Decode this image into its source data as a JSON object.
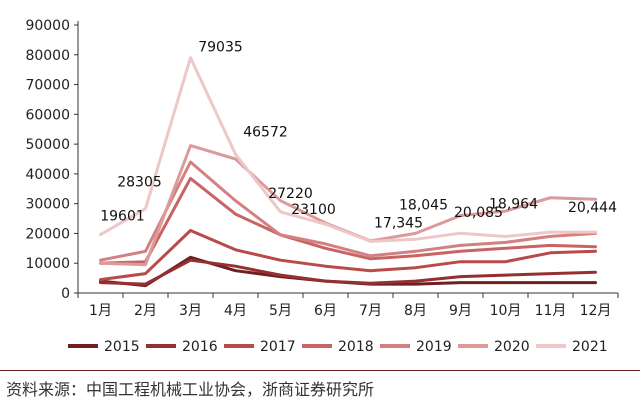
{
  "chart_data": {
    "type": "line",
    "title": "",
    "xlabel": "",
    "ylabel": "",
    "categories": [
      "1月",
      "2月",
      "3月",
      "4月",
      "5月",
      "6月",
      "7月",
      "8月",
      "9月",
      "10月",
      "11月",
      "12月"
    ],
    "ylim": [
      0,
      90000
    ],
    "yticks": [
      "0",
      "10000",
      "20000",
      "30000",
      "40000",
      "50000",
      "60000",
      "70000",
      "80000",
      "90000"
    ],
    "grid": false,
    "legend_position": "bottom",
    "series": [
      {
        "name": "2015",
        "color": "#6e1f1f",
        "values": [
          4000,
          2500,
          12000,
          7500,
          5500,
          4000,
          3000,
          3000,
          3500,
          3500,
          3500,
          3500
        ]
      },
      {
        "name": "2016",
        "color": "#963030",
        "values": [
          3500,
          3000,
          11000,
          9000,
          6000,
          4000,
          3300,
          4000,
          5500,
          6000,
          6500,
          7000
        ]
      },
      {
        "name": "2017",
        "color": "#b84a4a",
        "values": [
          4500,
          6500,
          21000,
          14500,
          11000,
          9000,
          7500,
          8500,
          10500,
          10500,
          13500,
          14000
        ]
      },
      {
        "name": "2018",
        "color": "#c86464",
        "values": [
          10000,
          10500,
          38500,
          26500,
          19500,
          15000,
          11500,
          12500,
          14000,
          15000,
          16000,
          15500
        ]
      },
      {
        "name": "2019",
        "color": "#d48080",
        "values": [
          11000,
          14000,
          44000,
          31000,
          19500,
          16500,
          12500,
          14000,
          16000,
          17000,
          19000,
          20000
        ]
      },
      {
        "name": "2020",
        "color": "#dc9a9a",
        "values": [
          10000,
          9500,
          49500,
          45000,
          31000,
          23500,
          17500,
          20000,
          26000,
          27500,
          32000,
          31500
        ]
      },
      {
        "name": "2021",
        "color": "#eec7c7",
        "values": [
          19601,
          28305,
          79035,
          46572,
          27220,
          23100,
          17345,
          18045,
          20085,
          18964,
          20444,
          20444
        ]
      }
    ],
    "annotations": [
      {
        "text": "79035",
        "series": "2021",
        "index": 2
      },
      {
        "text": "46572",
        "series": "2021",
        "index": 3
      },
      {
        "text": "28305",
        "series": "2021",
        "index": 1
      },
      {
        "text": "19601",
        "series": "2021",
        "index": 0
      },
      {
        "text": "27220",
        "series": "2021",
        "index": 4
      },
      {
        "text": "23100",
        "series": "2021",
        "index": 5
      },
      {
        "text": "17,345",
        "series": "2021",
        "index": 6
      },
      {
        "text": "18,045",
        "series": "2021",
        "index": 7
      },
      {
        "text": "20,085",
        "series": "2021",
        "index": 8
      },
      {
        "text": "18,964",
        "series": "2021",
        "index": 9
      },
      {
        "text": "20,444",
        "series": "2021",
        "index": 10
      }
    ]
  },
  "source": "资料来源：中国工程机械工业协会，浙商证券研究所"
}
